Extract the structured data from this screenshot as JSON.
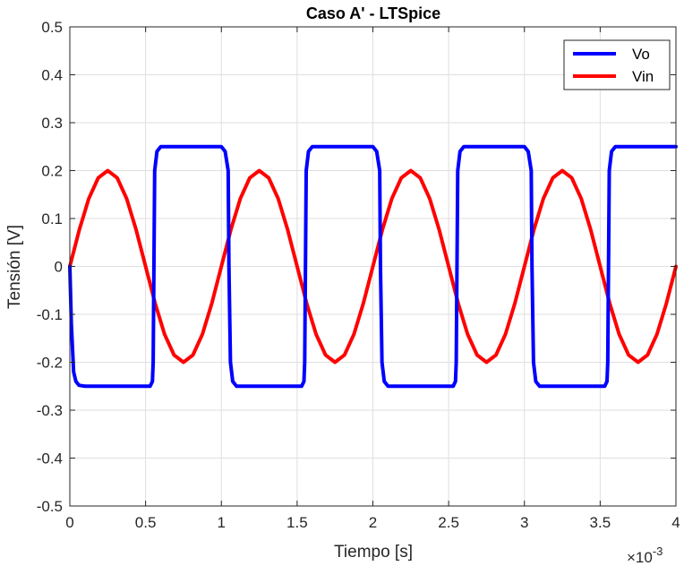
{
  "chart_data": {
    "type": "line",
    "title": "Caso A' - LTSpice",
    "xlabel": "Tiempo [s]",
    "ylabel": "Tensión [V]",
    "x_exponent_base": "×10",
    "x_exponent_power": "-3",
    "xlim": [
      0,
      4
    ],
    "ylim": [
      -0.5,
      0.5
    ],
    "xticks": [
      0,
      0.5,
      1,
      1.5,
      2,
      2.5,
      3,
      3.5,
      4
    ],
    "xtick_labels": [
      "0",
      "0.5",
      "1",
      "1.5",
      "2",
      "2.5",
      "3",
      "3.5",
      "4"
    ],
    "yticks": [
      -0.5,
      -0.4,
      -0.3,
      -0.2,
      -0.1,
      0,
      0.1,
      0.2,
      0.3,
      0.4,
      0.5
    ],
    "ytick_labels": [
      "-0.5",
      "-0.4",
      "-0.3",
      "-0.2",
      "-0.1",
      "0",
      "0.1",
      "0.2",
      "0.3",
      "0.4",
      "0.5"
    ],
    "grid": true,
    "legend_position": "top-right",
    "series": [
      {
        "name": "Vo",
        "color": "#0000ff",
        "x": [
          0,
          0.01,
          0.025,
          0.04,
          0.06,
          0.1,
          0.53,
          0.545,
          0.55,
          0.56,
          0.575,
          0.6,
          1.0,
          1.025,
          1.045,
          1.05,
          1.06,
          1.075,
          1.1,
          1.53,
          1.545,
          1.55,
          1.56,
          1.575,
          1.6,
          2.0,
          2.025,
          2.045,
          2.05,
          2.06,
          2.075,
          2.1,
          2.53,
          2.545,
          2.55,
          2.56,
          2.575,
          2.6,
          3.0,
          3.025,
          3.045,
          3.05,
          3.06,
          3.075,
          3.1,
          3.53,
          3.545,
          3.55,
          3.56,
          3.575,
          3.6,
          4.0
        ],
        "y": [
          0,
          -0.12,
          -0.22,
          -0.24,
          -0.248,
          -0.25,
          -0.25,
          -0.24,
          -0.2,
          0.2,
          0.24,
          0.25,
          0.25,
          0.24,
          0.2,
          0,
          -0.2,
          -0.24,
          -0.25,
          -0.25,
          -0.24,
          -0.2,
          0.2,
          0.24,
          0.25,
          0.25,
          0.24,
          0.2,
          0,
          -0.2,
          -0.24,
          -0.25,
          -0.25,
          -0.24,
          -0.2,
          0.2,
          0.24,
          0.25,
          0.25,
          0.24,
          0.2,
          0,
          -0.2,
          -0.24,
          -0.25,
          -0.25,
          -0.24,
          -0.2,
          0.2,
          0.24,
          0.25,
          0.25
        ]
      },
      {
        "name": "Vin",
        "color": "#ff0000",
        "x": [
          0,
          0.0625,
          0.125,
          0.1875,
          0.25,
          0.3125,
          0.375,
          0.4375,
          0.5,
          0.5625,
          0.625,
          0.6875,
          0.75,
          0.8125,
          0.875,
          0.9375,
          1.0,
          1.0625,
          1.125,
          1.1875,
          1.25,
          1.3125,
          1.375,
          1.4375,
          1.5,
          1.5625,
          1.625,
          1.6875,
          1.75,
          1.8125,
          1.875,
          1.9375,
          2.0,
          2.0625,
          2.125,
          2.1875,
          2.25,
          2.3125,
          2.375,
          2.4375,
          2.5,
          2.5625,
          2.625,
          2.6875,
          2.75,
          2.8125,
          2.875,
          2.9375,
          3.0,
          3.0625,
          3.125,
          3.1875,
          3.25,
          3.3125,
          3.375,
          3.4375,
          3.5,
          3.5625,
          3.625,
          3.6875,
          3.75,
          3.8125,
          3.875,
          3.9375,
          4.0
        ],
        "y": [
          0,
          0.0765,
          0.1414,
          0.1848,
          0.2,
          0.1848,
          0.1414,
          0.0765,
          0,
          -0.0765,
          -0.1414,
          -0.1848,
          -0.2,
          -0.1848,
          -0.1414,
          -0.0765,
          0,
          0.0765,
          0.1414,
          0.1848,
          0.2,
          0.1848,
          0.1414,
          0.0765,
          0,
          -0.0765,
          -0.1414,
          -0.1848,
          -0.2,
          -0.1848,
          -0.1414,
          -0.0765,
          0,
          0.0765,
          0.1414,
          0.1848,
          0.2,
          0.1848,
          0.1414,
          0.0765,
          0,
          -0.0765,
          -0.1414,
          -0.1848,
          -0.2,
          -0.1848,
          -0.1414,
          -0.0765,
          0,
          0.0765,
          0.1414,
          0.1848,
          0.2,
          0.1848,
          0.1414,
          0.0765,
          0,
          -0.0765,
          -0.1414,
          -0.1848,
          -0.2,
          -0.1848,
          -0.1414,
          -0.0765,
          0
        ]
      }
    ]
  }
}
